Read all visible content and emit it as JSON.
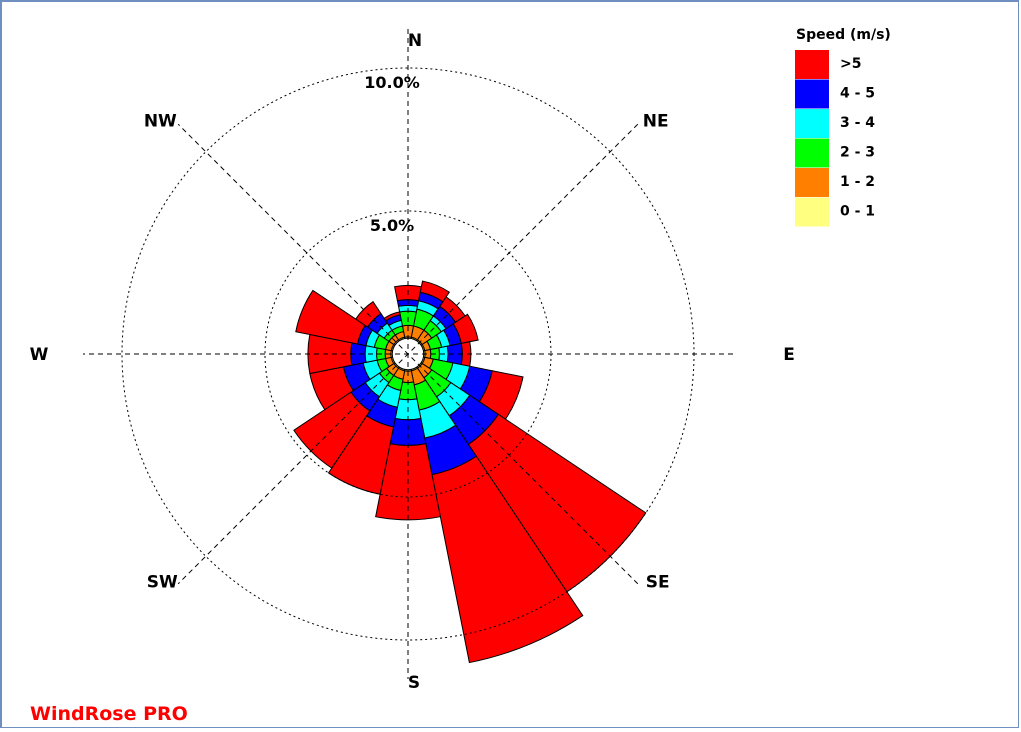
{
  "chart_data": {
    "type": "windrose",
    "product": "WindRose PRO",
    "compass_labels": {
      "N": "N",
      "NE": "NE",
      "E": "E",
      "SE": "SE",
      "S": "S",
      "SW": "SW",
      "W": "W",
      "NW": "NW"
    },
    "rings": [
      {
        "value": 5.0,
        "label": "5.0%"
      },
      {
        "value": 10.0,
        "label": "10.0%"
      }
    ],
    "center_calm_radius_pct": 0.55,
    "legend": {
      "title": "Speed (m/s)",
      "placement": "top-right",
      "bins": [
        {
          "label": ">5",
          "color": "#ff0000"
        },
        {
          "label": "4 - 5",
          "color": "#0000ff"
        },
        {
          "label": "3 - 4",
          "color": "#00ffff"
        },
        {
          "label": "2 - 3",
          "color": "#00ff00"
        },
        {
          "label": "1 - 2",
          "color": "#ff8000"
        },
        {
          "label": "0 - 1",
          "color": "#ffff80"
        }
      ]
    },
    "sector_width_deg": 22.5,
    "directions": [
      {
        "dir": "N",
        "angle": 0,
        "cum": [
          0.6,
          1.0,
          1.5,
          1.7,
          1.9,
          2.4
        ]
      },
      {
        "dir": "NNE",
        "angle": 22.5,
        "cum": [
          0.6,
          1.0,
          1.6,
          1.9,
          2.2,
          2.6
        ]
      },
      {
        "dir": "NE",
        "angle": 45,
        "cum": [
          0.6,
          1.0,
          1.4,
          1.6,
          2.0,
          2.4
        ]
      },
      {
        "dir": "ENE",
        "angle": 67.5,
        "cum": [
          0.6,
          0.8,
          1.2,
          1.5,
          1.9,
          2.5
        ]
      },
      {
        "dir": "E",
        "angle": 90,
        "cum": [
          0.6,
          0.8,
          1.1,
          1.4,
          1.9,
          2.2
        ]
      },
      {
        "dir": "ESE",
        "angle": 112.5,
        "cum": [
          0.6,
          0.9,
          1.6,
          2.2,
          3.0,
          4.1
        ]
      },
      {
        "dir": "SE",
        "angle": 135,
        "cum": [
          0.6,
          1.0,
          1.8,
          2.6,
          3.8,
          10.0
        ]
      },
      {
        "dir": "SSE",
        "angle": 157.5,
        "cum": [
          0.6,
          1.1,
          2.0,
          3.0,
          4.3,
          11.0
        ]
      },
      {
        "dir": "S",
        "angle": 180,
        "cum": [
          0.6,
          1.0,
          1.6,
          2.3,
          3.2,
          5.8
        ]
      },
      {
        "dir": "SSW",
        "angle": 202.5,
        "cum": [
          0.6,
          0.9,
          1.3,
          1.9,
          2.6,
          5.0
        ]
      },
      {
        "dir": "SW",
        "angle": 225,
        "cum": [
          0.6,
          0.9,
          1.2,
          1.8,
          2.4,
          4.8
        ]
      },
      {
        "dir": "WSW",
        "angle": 247.5,
        "cum": [
          0.6,
          0.8,
          1.1,
          1.6,
          2.3,
          3.5
        ]
      },
      {
        "dir": "W",
        "angle": 270,
        "cum": [
          0.6,
          0.8,
          1.1,
          1.5,
          2.0,
          3.5
        ]
      },
      {
        "dir": "WNW",
        "angle": 292.5,
        "cum": [
          0.6,
          0.8,
          1.2,
          1.5,
          1.8,
          4.0
        ]
      },
      {
        "dir": "NW",
        "angle": 315,
        "cum": [
          0.6,
          0.8,
          1.0,
          1.3,
          1.7,
          2.2
        ]
      },
      {
        "dir": "NNW",
        "angle": 337.5,
        "cum": [
          0.6,
          0.8,
          1.0,
          1.2,
          1.4,
          1.5
        ]
      }
    ]
  }
}
